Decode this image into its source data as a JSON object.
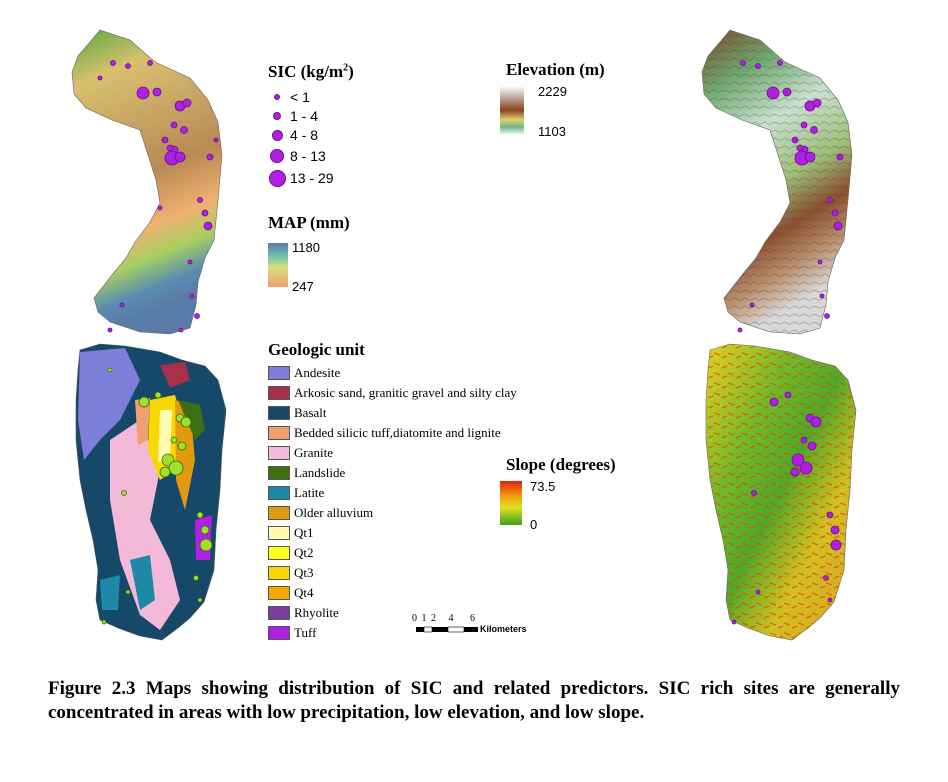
{
  "sic_legend": {
    "title": "SIC (kg/m",
    "title_sup": "2",
    "title_end": ")",
    "classes": [
      "< 1",
      "1 - 4",
      "4 - 8",
      "8 - 13",
      "13 - 29"
    ],
    "color": "#b020e0"
  },
  "elevation_legend": {
    "title": "Elevation (m)",
    "max": "2229",
    "min": "1103"
  },
  "map_legend": {
    "title": "MAP (mm)",
    "max": "1180",
    "min": "247"
  },
  "slope_legend": {
    "title": "Slope (degrees)",
    "max": "73.5",
    "min": "0"
  },
  "geology_legend": {
    "title": "Geologic unit",
    "units": [
      {
        "label": "Andesite",
        "color": "#7b7fd8"
      },
      {
        "label": "Arkosic sand, granitic gravel and silty clay",
        "color": "#a83048"
      },
      {
        "label": "Basalt",
        "color": "#16486a"
      },
      {
        "label": "Bedded silicic tuff,diatomite and lignite",
        "color": "#f0a070"
      },
      {
        "label": "Granite",
        "color": "#f4b8d8"
      },
      {
        "label": "Landslide",
        "color": "#3e6e12"
      },
      {
        "label": "Latite",
        "color": "#1e88a8"
      },
      {
        "label": "Older alluvium",
        "color": "#e09a10"
      },
      {
        "label": "Qt1",
        "color": "#fffbb0"
      },
      {
        "label": "Qt2",
        "color": "#ffff20"
      },
      {
        "label": "Qt3",
        "color": "#f8d800"
      },
      {
        "label": "Qt4",
        "color": "#f4a800"
      },
      {
        "label": "Rhyolite",
        "color": "#7a3ea0"
      },
      {
        "label": "Tuff",
        "color": "#b020e0"
      }
    ]
  },
  "scale_bar": {
    "ticks": [
      "0",
      "1",
      "2",
      "4",
      "6"
    ],
    "unit": "Kilometers"
  },
  "caption": "Figure 2.3 Maps showing distribution of SIC and related predictors. SIC rich sites are generally concentrated in areas with low precipitation, low elevation, and low slope.",
  "colors": {
    "site_marker": "#b020e0",
    "geology_site_marker": "#9ee02a"
  }
}
